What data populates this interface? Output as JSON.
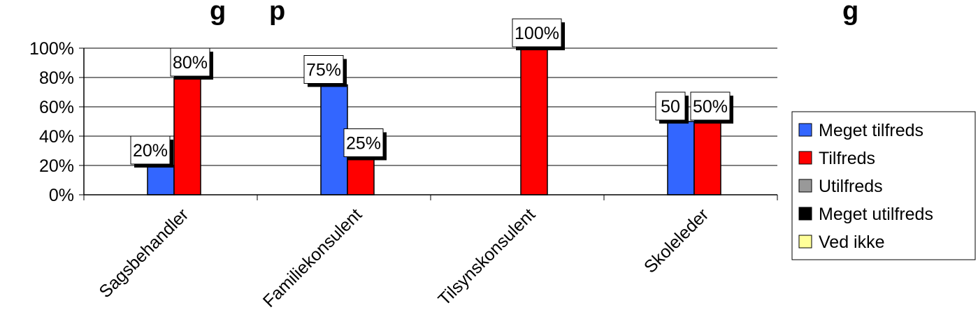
{
  "chart_data": {
    "type": "bar",
    "title_fragments": [
      "g",
      "p",
      "g"
    ],
    "categories": [
      "Sagsbehandler",
      "Familiekonsulent",
      "Tilsynskonsulent",
      "Skoleleder"
    ],
    "series": [
      {
        "name": "Meget tilfreds",
        "color": "#3366ff",
        "values": [
          20,
          75,
          null,
          50
        ],
        "labels": [
          "20%",
          "75%",
          null,
          "50"
        ]
      },
      {
        "name": "Tilfreds",
        "color": "#ff0000",
        "values": [
          80,
          25,
          100,
          50
        ],
        "labels": [
          "80%",
          "25%",
          "100%",
          "50%"
        ]
      },
      {
        "name": "Utilfreds",
        "color": "#999999",
        "values": [
          null,
          null,
          null,
          null
        ],
        "labels": [
          null,
          null,
          null,
          null
        ]
      },
      {
        "name": "Meget utilfreds",
        "color": "#000000",
        "values": [
          null,
          null,
          null,
          null
        ],
        "labels": [
          null,
          null,
          null,
          null
        ]
      },
      {
        "name": "Ved ikke",
        "color": "#ffff99",
        "values": [
          null,
          null,
          null,
          null
        ],
        "labels": [
          null,
          null,
          null,
          null
        ]
      }
    ],
    "ylim": [
      0,
      100
    ],
    "yticks": [
      "0%",
      "20%",
      "40%",
      "60%",
      "80%",
      "100%"
    ],
    "grid": true,
    "legend_position": "right"
  }
}
